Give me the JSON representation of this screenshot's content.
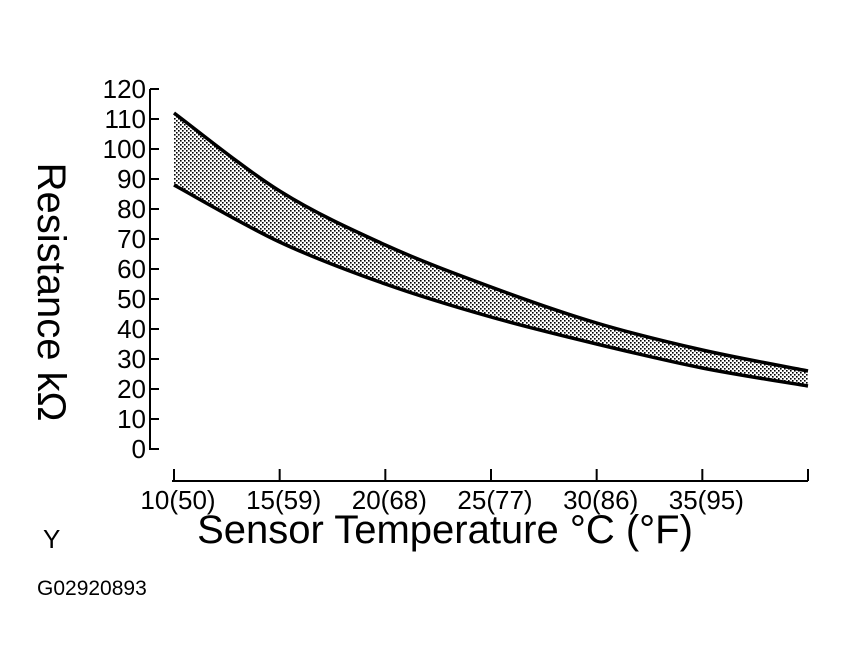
{
  "chart_data": {
    "type": "area",
    "ylabel": "Resistance kΩ",
    "xlabel": "Sensor Temperature °C (°F)",
    "x_ticks": [
      {
        "value": 10,
        "label": "10(50)"
      },
      {
        "value": 15,
        "label": "15(59)"
      },
      {
        "value": 20,
        "label": "20(68)"
      },
      {
        "value": 25,
        "label": "25(77)"
      },
      {
        "value": 30,
        "label": "30(86)"
      },
      {
        "value": 35,
        "label": "35(95)"
      },
      {
        "value": 40,
        "label": ""
      }
    ],
    "y_ticks": [
      {
        "value": 0,
        "label": "0"
      },
      {
        "value": 10,
        "label": "10"
      },
      {
        "value": 20,
        "label": "20"
      },
      {
        "value": 30,
        "label": "30"
      },
      {
        "value": 40,
        "label": "40"
      },
      {
        "value": 50,
        "label": "50"
      },
      {
        "value": 60,
        "label": "60"
      },
      {
        "value": 70,
        "label": "70"
      },
      {
        "value": 80,
        "label": "80"
      },
      {
        "value": 90,
        "label": "90"
      },
      {
        "value": 100,
        "label": "100"
      },
      {
        "value": 110,
        "label": "110"
      },
      {
        "value": 120,
        "label": "120"
      }
    ],
    "xlim": [
      10,
      40
    ],
    "ylim": [
      0,
      120
    ],
    "series": [
      {
        "x": [
          10,
          15,
          20,
          25,
          30,
          35,
          40
        ],
        "values": [
          112,
          86,
          68,
          54,
          42,
          33,
          26
        ]
      },
      {
        "x": [
          10,
          15,
          20,
          25,
          30,
          35,
          40
        ],
        "values": [
          88,
          69,
          55,
          44,
          35,
          27,
          21
        ]
      }
    ],
    "fill": "between series (stippled band)",
    "grid": false
  },
  "corner_label": "Y",
  "figure_code": "G02920893"
}
